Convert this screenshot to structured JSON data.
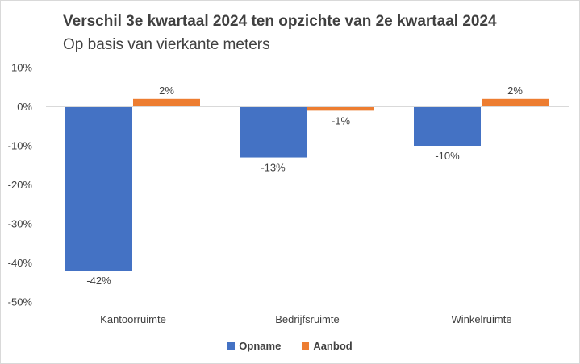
{
  "chart_data": {
    "type": "bar",
    "title": "Verschil 3e kwartaal 2024 ten opzichte van 2e kwartaal 2024",
    "subtitle": "Op basis van vierkante meters",
    "categories": [
      "Kantoorruimte",
      "Bedrijfsruimte",
      "Winkelruimte"
    ],
    "series": [
      {
        "name": "Opname",
        "values": [
          -42,
          -13,
          -10
        ],
        "labels": [
          "-42%",
          "-13%",
          "-10%"
        ],
        "color": "#4472c4"
      },
      {
        "name": "Aanbod",
        "values": [
          2,
          -1,
          2
        ],
        "labels": [
          "2%",
          "-1%",
          "2%"
        ],
        "color": "#ed7d31"
      }
    ],
    "yticks": [
      10,
      0,
      -10,
      -20,
      -30,
      -40,
      -50
    ],
    "ytick_labels": [
      "10%",
      "0%",
      "-10%",
      "-20%",
      "-30%",
      "-40%",
      "-50%"
    ],
    "ylim": [
      -50,
      10
    ],
    "xlabel": "",
    "ylabel": "",
    "grid": false,
    "legend_position": "bottom"
  }
}
